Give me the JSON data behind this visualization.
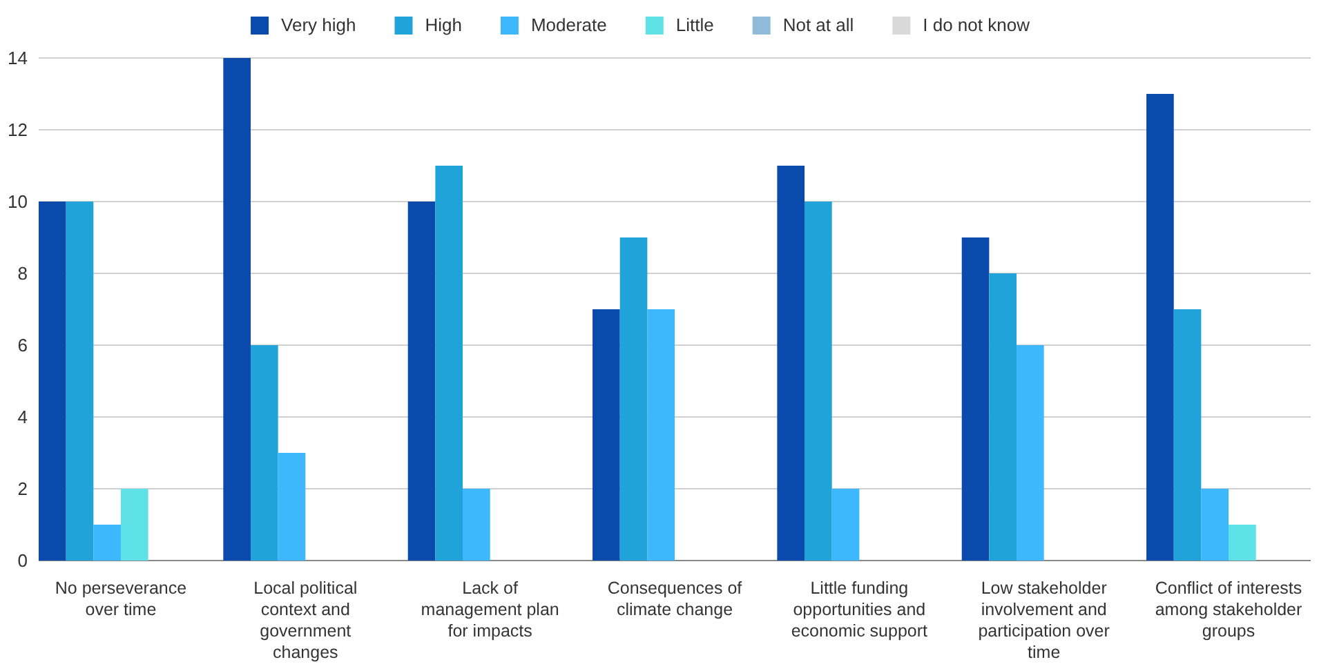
{
  "chart_data": {
    "type": "bar",
    "categories": [
      "No perseverance over time",
      "Local political context and government changes",
      "Lack of management plan for impacts",
      "Consequences of climate change",
      "Little funding opportunities and economic support",
      "Low stakeholder involvement and participation over time",
      "Conflict of interests among stakeholder groups"
    ],
    "series": [
      {
        "name": "Very high",
        "color": "#0b4aad",
        "values": [
          10,
          14,
          10,
          7,
          11,
          9,
          13
        ]
      },
      {
        "name": "High",
        "color": "#20a3d8",
        "values": [
          10,
          6,
          11,
          9,
          10,
          8,
          7
        ]
      },
      {
        "name": "Moderate",
        "color": "#3db8fd",
        "values": [
          1,
          3,
          2,
          7,
          2,
          6,
          2
        ]
      },
      {
        "name": "Little",
        "color": "#5fe1e8",
        "values": [
          2,
          0,
          0,
          0,
          0,
          0,
          1
        ]
      },
      {
        "name": "Not at all",
        "color": "#8fbbd9",
        "values": [
          0,
          0,
          0,
          0,
          0,
          0,
          0
        ]
      },
      {
        "name": "I do not know",
        "color": "#d9d9d9",
        "values": [
          0,
          0,
          0,
          0,
          0,
          0,
          0
        ]
      }
    ],
    "ylim": [
      0,
      14
    ],
    "yticks": [
      0,
      2,
      4,
      6,
      8,
      10,
      12,
      14
    ],
    "grid": "y",
    "legend": "top"
  }
}
